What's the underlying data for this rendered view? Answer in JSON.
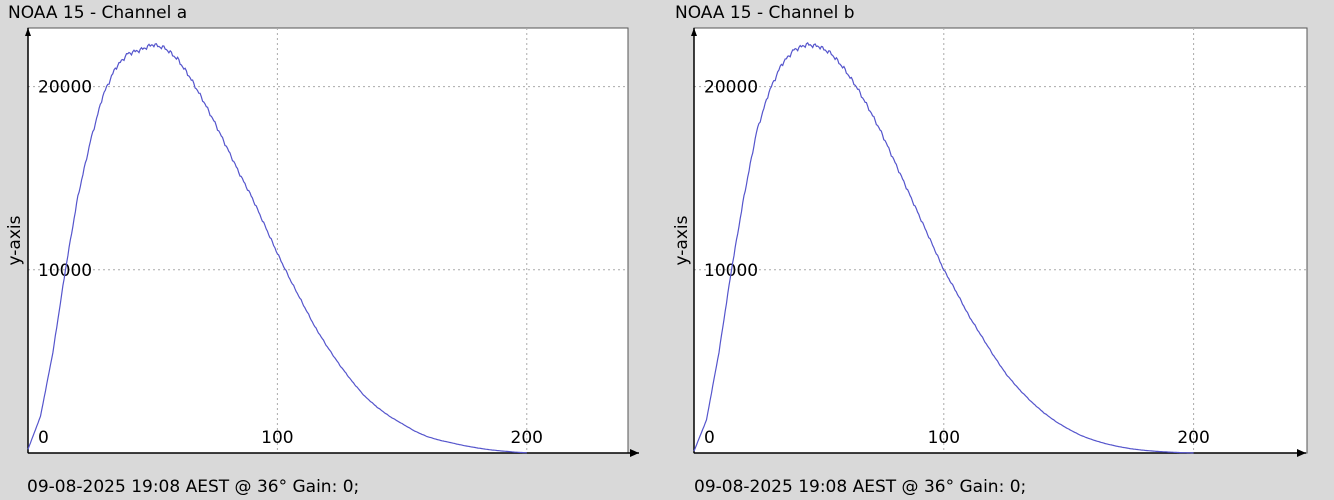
{
  "colors": {
    "background": "#d9d9d9",
    "plot_area": "#ffffff",
    "series_line": "#5555cc",
    "grid": "#aaaaaa",
    "axis": "#000000"
  },
  "chart_data": [
    {
      "type": "line",
      "title": "NOAA 15 - Channel a",
      "ylabel": "y-axis",
      "xlabel": "",
      "footer": "09-08-2025 19:08 AEST @ 36° Gain: 0;",
      "xlim": [
        0,
        245
      ],
      "ylim": [
        0,
        23200
      ],
      "x_ticks": [
        0,
        100,
        200
      ],
      "y_ticks": [
        10000,
        20000
      ],
      "x_tick_labels": [
        "0",
        "100",
        "200"
      ],
      "y_tick_labels": [
        "10000",
        "20000"
      ],
      "grid": true,
      "series": [
        {
          "x": [
            0,
            5,
            10,
            15,
            20,
            25,
            30,
            35,
            40,
            45,
            50,
            55,
            60,
            65,
            70,
            75,
            80,
            85,
            90,
            95,
            100,
            105,
            110,
            115,
            120,
            125,
            130,
            135,
            140,
            145,
            150,
            155,
            160,
            165,
            170,
            175,
            180,
            185,
            190,
            195,
            200
          ],
          "y": [
            200,
            2000,
            5500,
            10000,
            14000,
            17000,
            19500,
            21000,
            21800,
            22000,
            22300,
            22100,
            21500,
            20500,
            19300,
            18000,
            16600,
            15200,
            13900,
            12400,
            10900,
            9500,
            8200,
            6900,
            5800,
            4800,
            3900,
            3100,
            2500,
            2000,
            1600,
            1200,
            900,
            700,
            550,
            400,
            280,
            180,
            110,
            50,
            10
          ]
        }
      ]
    },
    {
      "type": "line",
      "title": "NOAA 15 - Channel b",
      "ylabel": "y-axis",
      "xlabel": "",
      "footer": "09-08-2025 19:08 AEST @ 36° Gain: 0;",
      "xlim": [
        0,
        245
      ],
      "ylim": [
        0,
        23200
      ],
      "x_ticks": [
        0,
        100,
        200
      ],
      "y_ticks": [
        10000,
        20000
      ],
      "x_tick_labels": [
        "0",
        "100",
        "200"
      ],
      "y_tick_labels": [
        "10000",
        "20000"
      ],
      "grid": true,
      "series": [
        {
          "x": [
            0,
            5,
            10,
            15,
            20,
            25,
            30,
            35,
            40,
            45,
            50,
            55,
            60,
            65,
            70,
            75,
            80,
            85,
            90,
            95,
            100,
            105,
            110,
            115,
            120,
            125,
            130,
            135,
            140,
            145,
            150,
            155,
            160,
            165,
            170,
            175,
            180,
            185,
            190,
            195,
            200
          ],
          "y": [
            100,
            1800,
            5500,
            10000,
            14000,
            17500,
            19700,
            21200,
            22000,
            22300,
            22200,
            21800,
            21000,
            20000,
            18800,
            17500,
            16000,
            14500,
            13000,
            11500,
            10000,
            8800,
            7500,
            6400,
            5300,
            4300,
            3500,
            2800,
            2200,
            1700,
            1300,
            950,
            700,
            500,
            350,
            230,
            150,
            90,
            50,
            20,
            5
          ]
        }
      ]
    }
  ]
}
